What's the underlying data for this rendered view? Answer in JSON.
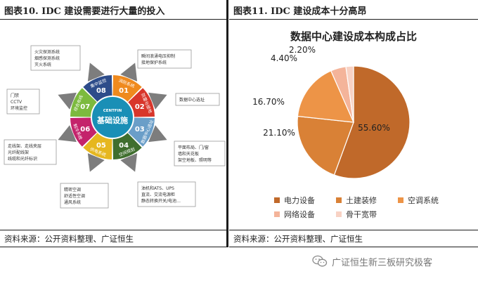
{
  "left": {
    "title": "图表10.  IDC 建设需要进行大量的投入",
    "source": "资料来源：公开资料整理、广证恒生",
    "diagram": {
      "center_label": "基础设施",
      "logo": "CENTFIN",
      "segments": [
        {
          "num": "01",
          "name": "消防系统",
          "color": "#ef8a1e"
        },
        {
          "num": "02",
          "name": "防雷与接地",
          "color": "#d8362b"
        },
        {
          "num": "03",
          "name": "数据中心选址",
          "color": "#6a9ec8"
        },
        {
          "num": "04",
          "name": "空间规划",
          "color": "#3f6e2e"
        },
        {
          "num": "05",
          "name": "供电系统",
          "color": "#e6b71f"
        },
        {
          "num": "06",
          "name": "制冷系统",
          "color": "#c4236b"
        },
        {
          "num": "07",
          "name": "综合布线",
          "color": "#7cba3e"
        },
        {
          "num": "08",
          "name": "集中监控",
          "color": "#2d4c8a"
        }
      ],
      "boxes": [
        {
          "lines": [
            "火灾探测系统",
            "烟感探测系统",
            "灭火系统"
          ]
        },
        {
          "lines": [
            "瞬间浪涌电压抑制",
            "接地保护系统"
          ]
        },
        {
          "lines": [
            "数据中心选址"
          ]
        },
        {
          "lines": [
            "平面布局、门/窗",
            "墙和天花板",
            "架空地板、照明等"
          ]
        },
        {
          "lines": [
            "油机和ATS、UPS",
            "直流、交流电源柜",
            "静态转换开关/电池…"
          ]
        },
        {
          "lines": [
            "精密空调",
            "舒适性空调",
            "通风系统"
          ]
        },
        {
          "lines": [
            "走线架、走线夹层",
            "光纤配线架",
            "线缆和光纤标识"
          ]
        },
        {
          "lines": [
            "门禁",
            "CCTV",
            "环境监控"
          ]
        }
      ]
    }
  },
  "right": {
    "title": "图表11.  IDC 建设成本十分高昂",
    "source": "资料来源：公开资料整理、广证恒生"
  },
  "chart_data": {
    "type": "pie",
    "title": "数据中心建设成本构成占比",
    "slices": [
      {
        "label": "电力设备",
        "value": 55.6,
        "text": "55.60%",
        "color": "#c0692a"
      },
      {
        "label": "土建装修",
        "value": 21.1,
        "text": "21.10%",
        "color": "#d98136"
      },
      {
        "label": "空调系统",
        "value": 16.7,
        "text": "16.70%",
        "color": "#ed9447"
      },
      {
        "label": "网络设备",
        "value": 4.4,
        "text": "4.40%",
        "color": "#f4b49a"
      },
      {
        "label": "骨干宽带",
        "value": 2.2,
        "text": "2.20%",
        "color": "#f8d2c4"
      }
    ],
    "legend_position": "bottom"
  },
  "watermark": {
    "text": "广证恒生新三板研究极客",
    "icon": "wechat-icon"
  }
}
